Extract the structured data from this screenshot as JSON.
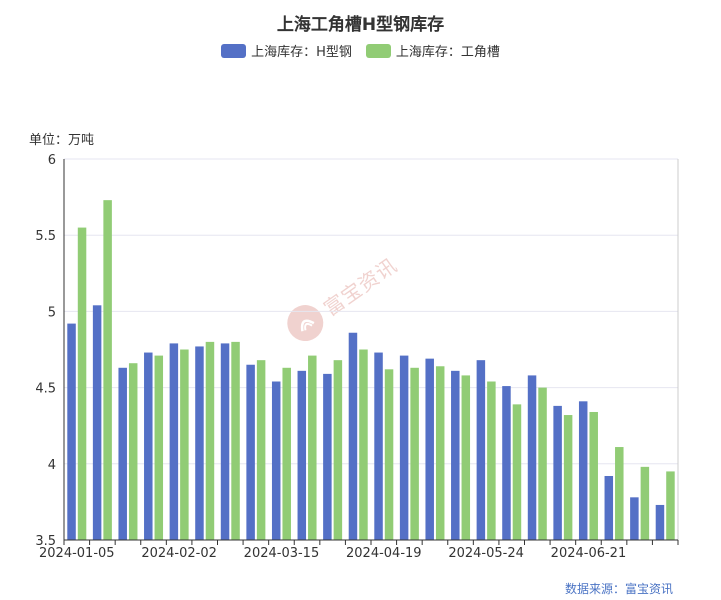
{
  "chart_data": {
    "type": "bar",
    "title": "上海工角槽H型钢库存",
    "unit_label": "单位：万吨",
    "source": "数据来源：富宝资讯",
    "watermark": "富宝资讯",
    "ylim": [
      3.5,
      6
    ],
    "yticks": [
      "3.5",
      "4",
      "4.5",
      "5",
      "5.5",
      "6"
    ],
    "ytick_values": [
      3.5,
      4,
      4.5,
      5,
      5.5,
      6
    ],
    "xtick_labels": [
      "2024-01-05",
      "2024-02-02",
      "2024-03-15",
      "2024-04-19",
      "2024-05-24",
      "2024-06-21"
    ],
    "xtick_indices": [
      0,
      4,
      8,
      12,
      16,
      20
    ],
    "grid": true,
    "legend_position": "top-center",
    "categories_count": 24,
    "series": [
      {
        "name": "上海库存：H型钢",
        "color": "#5470c6",
        "values": [
          4.92,
          5.04,
          4.63,
          4.73,
          4.79,
          4.77,
          4.79,
          4.65,
          4.54,
          4.61,
          4.59,
          4.86,
          4.73,
          4.71,
          4.69,
          4.61,
          4.68,
          4.51,
          4.58,
          4.38,
          4.41,
          3.92,
          3.78,
          3.73
        ]
      },
      {
        "name": "上海库存：工角槽",
        "color": "#91cc75",
        "values": [
          5.55,
          5.73,
          4.66,
          4.71,
          4.75,
          4.8,
          4.8,
          4.68,
          4.63,
          4.71,
          4.68,
          4.75,
          4.62,
          4.63,
          4.64,
          4.58,
          4.54,
          4.39,
          4.5,
          4.32,
          4.34,
          4.11,
          3.98,
          3.95
        ]
      }
    ]
  }
}
